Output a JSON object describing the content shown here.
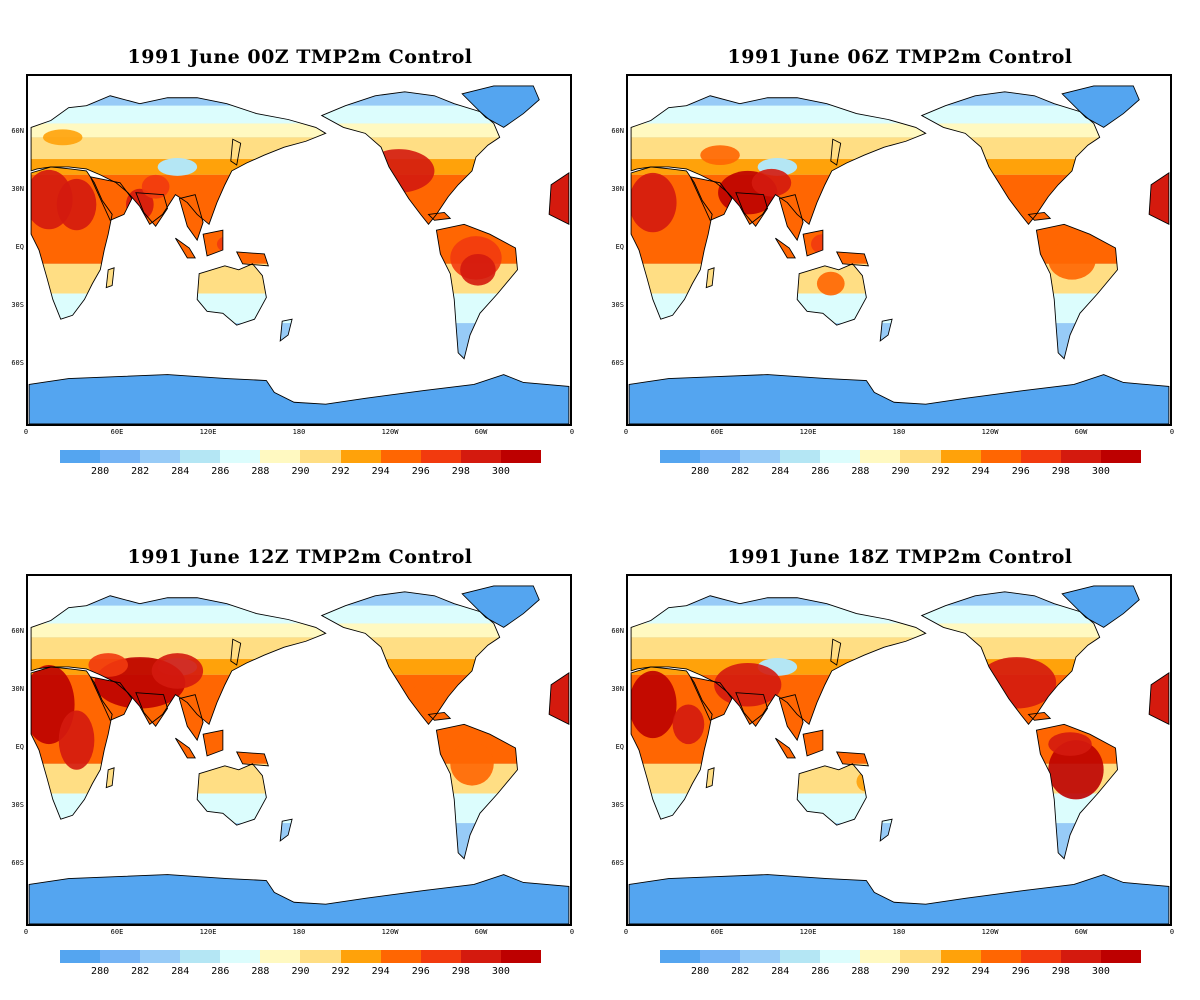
{
  "panels": [
    {
      "title": "1991 June  00Z TMP2m Control",
      "variant": "00Z"
    },
    {
      "title": "1991  June 06Z TMP2m Control",
      "variant": "06Z"
    },
    {
      "title": "1991  June 12Z TMP2m Control",
      "variant": "12Z"
    },
    {
      "title": "1991  June 18Z TMP2m Control",
      "variant": "18Z"
    }
  ],
  "lat_labels": [
    "60N",
    "30N",
    "EQ",
    "30S",
    "60S"
  ],
  "lon_labels": [
    "0",
    "60E",
    "120E",
    "180",
    "120W",
    "60W",
    "0"
  ],
  "colorbar": {
    "labels": [
      "280",
      "282",
      "284",
      "286",
      "288",
      "290",
      "292",
      "294",
      "296",
      "298",
      "300"
    ],
    "colors": [
      "#54a5f0",
      "#75b4f5",
      "#97cbf7",
      "#b4e6f4",
      "#dcfdfd",
      "#fff9c1",
      "#ffde84",
      "#ffa20a",
      "#ff6602",
      "#f23a0e",
      "#d41a0e",
      "#bd0000"
    ]
  }
}
